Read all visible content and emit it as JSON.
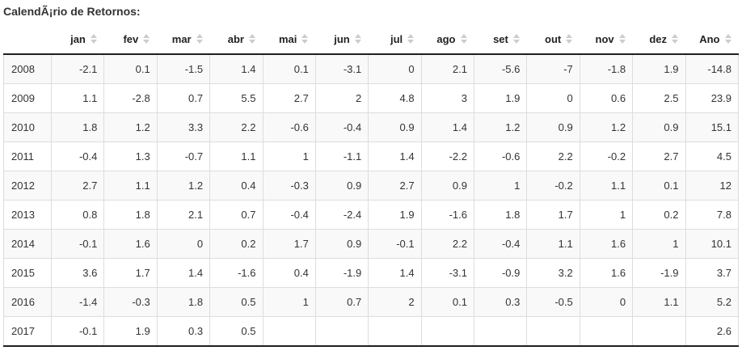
{
  "title": "CalendÃ¡rio de Retornos:",
  "icons": {
    "sort-icon": "up-down-triangles"
  },
  "colors": {
    "heavy_border": "#1f1f1f",
    "light_border": "#dddddd",
    "stripe_row": "#f9f9f9",
    "header_text": "#222222",
    "cell_text": "#333333",
    "sort_icon": "#cccccc",
    "title_text": "#333333"
  },
  "table": {
    "year_column_header": "",
    "columns": [
      "jan",
      "fev",
      "mar",
      "abr",
      "mai",
      "jun",
      "jul",
      "ago",
      "set",
      "out",
      "nov",
      "dez",
      "Ano"
    ],
    "rows": [
      {
        "year": "2008",
        "values": [
          "-2.1",
          "0.1",
          "-1.5",
          "1.4",
          "0.1",
          "-3.1",
          "0",
          "2.1",
          "-5.6",
          "-7",
          "-1.8",
          "1.9",
          "-14.8"
        ]
      },
      {
        "year": "2009",
        "values": [
          "1.1",
          "-2.8",
          "0.7",
          "5.5",
          "2.7",
          "2",
          "4.8",
          "3",
          "1.9",
          "0",
          "0.6",
          "2.5",
          "23.9"
        ]
      },
      {
        "year": "2010",
        "values": [
          "1.8",
          "1.2",
          "3.3",
          "2.2",
          "-0.6",
          "-0.4",
          "0.9",
          "1.4",
          "1.2",
          "0.9",
          "1.2",
          "0.9",
          "15.1"
        ]
      },
      {
        "year": "2011",
        "values": [
          "-0.4",
          "1.3",
          "-0.7",
          "1.1",
          "1",
          "-1.1",
          "1.4",
          "-2.2",
          "-0.6",
          "2.2",
          "-0.2",
          "2.7",
          "4.5"
        ]
      },
      {
        "year": "2012",
        "values": [
          "2.7",
          "1.1",
          "1.2",
          "0.4",
          "-0.3",
          "0.9",
          "2.7",
          "0.9",
          "1",
          "-0.2",
          "1.1",
          "0.1",
          "12"
        ]
      },
      {
        "year": "2013",
        "values": [
          "0.8",
          "1.8",
          "2.1",
          "0.7",
          "-0.4",
          "-2.4",
          "1.9",
          "-1.6",
          "1.8",
          "1.7",
          "1",
          "0.2",
          "7.8"
        ]
      },
      {
        "year": "2014",
        "values": [
          "-0.1",
          "1.6",
          "0",
          "0.2",
          "1.7",
          "0.9",
          "-0.1",
          "2.2",
          "-0.4",
          "1.1",
          "1.6",
          "1",
          "10.1"
        ]
      },
      {
        "year": "2015",
        "values": [
          "3.6",
          "1.7",
          "1.4",
          "-1.6",
          "0.4",
          "-1.9",
          "1.4",
          "-3.1",
          "-0.9",
          "3.2",
          "1.6",
          "-1.9",
          "3.7"
        ]
      },
      {
        "year": "2016",
        "values": [
          "-1.4",
          "-0.3",
          "1.8",
          "0.5",
          "1",
          "0.7",
          "2",
          "0.1",
          "0.3",
          "-0.5",
          "0",
          "1.1",
          "5.2"
        ]
      },
      {
        "year": "2017",
        "values": [
          "-0.1",
          "1.9",
          "0.3",
          "0.5",
          "",
          "",
          "",
          "",
          "",
          "",
          "",
          "",
          "2.6"
        ]
      }
    ]
  }
}
